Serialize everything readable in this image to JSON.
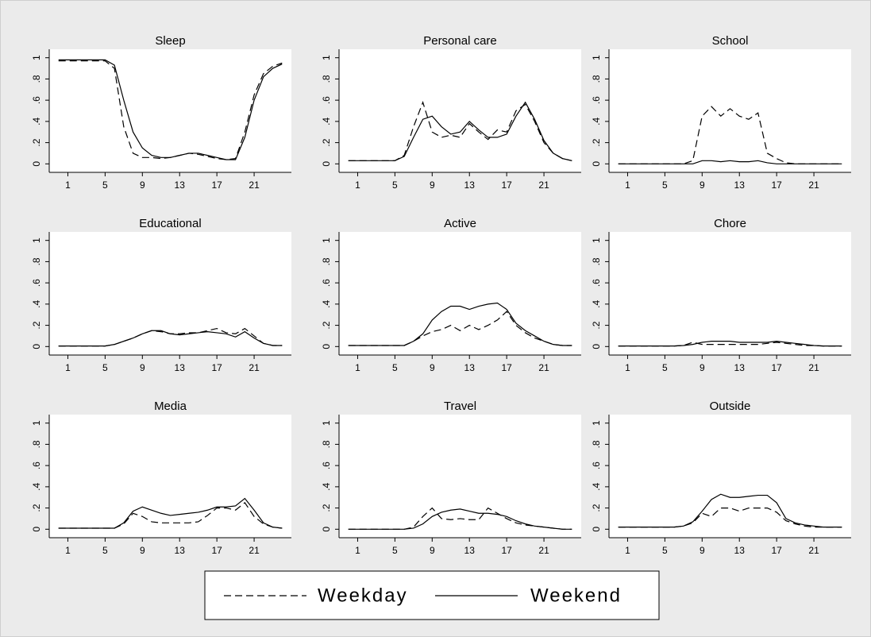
{
  "chart_data": [
    {
      "type": "line",
      "title": "Sleep",
      "x": [
        0,
        1,
        2,
        3,
        4,
        5,
        6,
        7,
        8,
        9,
        10,
        11,
        12,
        13,
        14,
        15,
        16,
        17,
        18,
        19,
        20,
        21,
        22,
        23,
        24
      ],
      "xlim": [
        -1,
        25
      ],
      "xticks": [
        1,
        5,
        9,
        13,
        17,
        21
      ],
      "ylim": [
        -0.08,
        1.08
      ],
      "yticks": [
        0,
        {
          "value": 0.2,
          "label": ".2"
        },
        {
          "value": 0.4,
          "label": ".4"
        },
        {
          "value": 0.6,
          "label": ".6"
        },
        {
          "value": 0.8,
          "label": ".8"
        },
        1
      ],
      "series": [
        {
          "name": "Weekday",
          "color": "#000000",
          "style": "dashed",
          "values": [
            0.97,
            0.97,
            0.97,
            0.97,
            0.97,
            0.97,
            0.9,
            0.35,
            0.1,
            0.06,
            0.06,
            0.05,
            0.06,
            0.08,
            0.1,
            0.09,
            0.07,
            0.05,
            0.04,
            0.05,
            0.3,
            0.65,
            0.85,
            0.92,
            0.95
          ]
        },
        {
          "name": "Weekend",
          "color": "#000000",
          "style": "solid",
          "values": [
            0.98,
            0.98,
            0.98,
            0.98,
            0.98,
            0.98,
            0.93,
            0.6,
            0.3,
            0.15,
            0.08,
            0.06,
            0.06,
            0.08,
            0.1,
            0.1,
            0.08,
            0.06,
            0.04,
            0.04,
            0.25,
            0.6,
            0.82,
            0.9,
            0.94
          ]
        }
      ]
    },
    {
      "type": "line",
      "title": "Personal care",
      "x": [
        0,
        1,
        2,
        3,
        4,
        5,
        6,
        7,
        8,
        9,
        10,
        11,
        12,
        13,
        14,
        15,
        16,
        17,
        18,
        19,
        20,
        21,
        22,
        23,
        24
      ],
      "xlim": [
        -1,
        25
      ],
      "xticks": [
        1,
        5,
        9,
        13,
        17,
        21
      ],
      "ylim": [
        -0.08,
        1.08
      ],
      "yticks": [
        0,
        {
          "value": 0.2,
          "label": ".2"
        },
        {
          "value": 0.4,
          "label": ".4"
        },
        {
          "value": 0.6,
          "label": ".6"
        },
        {
          "value": 0.8,
          "label": ".8"
        },
        1
      ],
      "series": [
        {
          "name": "Weekday",
          "color": "#000000",
          "style": "dashed",
          "values": [
            0.03,
            0.03,
            0.03,
            0.03,
            0.03,
            0.03,
            0.08,
            0.35,
            0.58,
            0.3,
            0.25,
            0.27,
            0.25,
            0.38,
            0.3,
            0.23,
            0.32,
            0.3,
            0.5,
            0.56,
            0.4,
            0.2,
            0.1,
            0.05,
            0.03
          ]
        },
        {
          "name": "Weekend",
          "color": "#000000",
          "style": "solid",
          "values": [
            0.03,
            0.03,
            0.03,
            0.03,
            0.03,
            0.03,
            0.07,
            0.25,
            0.42,
            0.45,
            0.35,
            0.28,
            0.3,
            0.4,
            0.32,
            0.25,
            0.25,
            0.28,
            0.45,
            0.58,
            0.42,
            0.22,
            0.1,
            0.05,
            0.03
          ]
        }
      ]
    },
    {
      "type": "line",
      "title": "School",
      "x": [
        0,
        1,
        2,
        3,
        4,
        5,
        6,
        7,
        8,
        9,
        10,
        11,
        12,
        13,
        14,
        15,
        16,
        17,
        18,
        19,
        20,
        21,
        22,
        23,
        24
      ],
      "xlim": [
        -1,
        25
      ],
      "xticks": [
        1,
        5,
        9,
        13,
        17,
        21
      ],
      "ylim": [
        -0.08,
        1.08
      ],
      "yticks": [
        0,
        {
          "value": 0.2,
          "label": ".2"
        },
        {
          "value": 0.4,
          "label": ".4"
        },
        {
          "value": 0.6,
          "label": ".6"
        },
        {
          "value": 0.8,
          "label": ".8"
        },
        1
      ],
      "series": [
        {
          "name": "Weekday",
          "color": "#000000",
          "style": "dashed",
          "values": [
            0,
            0,
            0,
            0,
            0,
            0,
            0,
            0,
            0.03,
            0.45,
            0.54,
            0.45,
            0.52,
            0.45,
            0.42,
            0.48,
            0.1,
            0.05,
            0.01,
            0,
            0,
            0,
            0,
            0,
            0
          ]
        },
        {
          "name": "Weekend",
          "color": "#000000",
          "style": "solid",
          "values": [
            0,
            0,
            0,
            0,
            0,
            0,
            0,
            0,
            0,
            0.03,
            0.03,
            0.02,
            0.03,
            0.02,
            0.02,
            0.03,
            0.01,
            0,
            0,
            0,
            0,
            0,
            0,
            0,
            0
          ]
        }
      ]
    },
    {
      "type": "line",
      "title": "Educational",
      "x": [
        0,
        1,
        2,
        3,
        4,
        5,
        6,
        7,
        8,
        9,
        10,
        11,
        12,
        13,
        14,
        15,
        16,
        17,
        18,
        19,
        20,
        21,
        22,
        23,
        24
      ],
      "xlim": [
        -1,
        25
      ],
      "xticks": [
        1,
        5,
        9,
        13,
        17,
        21
      ],
      "ylim": [
        -0.08,
        1.08
      ],
      "yticks": [
        0,
        {
          "value": 0.2,
          "label": ".2"
        },
        {
          "value": 0.4,
          "label": ".4"
        },
        {
          "value": 0.6,
          "label": ".6"
        },
        {
          "value": 0.8,
          "label": ".8"
        },
        1
      ],
      "series": [
        {
          "name": "Weekday",
          "color": "#000000",
          "style": "dashed",
          "values": [
            0.005,
            0.005,
            0.005,
            0.005,
            0.005,
            0.005,
            0.02,
            0.05,
            0.08,
            0.12,
            0.15,
            0.14,
            0.12,
            0.12,
            0.13,
            0.13,
            0.15,
            0.17,
            0.13,
            0.12,
            0.17,
            0.1,
            0.03,
            0.01,
            0.01
          ]
        },
        {
          "name": "Weekend",
          "color": "#000000",
          "style": "solid",
          "values": [
            0.005,
            0.005,
            0.005,
            0.005,
            0.005,
            0.005,
            0.02,
            0.05,
            0.08,
            0.12,
            0.15,
            0.15,
            0.12,
            0.11,
            0.12,
            0.13,
            0.14,
            0.13,
            0.12,
            0.09,
            0.14,
            0.08,
            0.03,
            0.01,
            0.01
          ]
        }
      ]
    },
    {
      "type": "line",
      "title": "Active",
      "x": [
        0,
        1,
        2,
        3,
        4,
        5,
        6,
        7,
        8,
        9,
        10,
        11,
        12,
        13,
        14,
        15,
        16,
        17,
        18,
        19,
        20,
        21,
        22,
        23,
        24
      ],
      "xlim": [
        -1,
        25
      ],
      "xticks": [
        1,
        5,
        9,
        13,
        17,
        21
      ],
      "ylim": [
        -0.08,
        1.08
      ],
      "yticks": [
        0,
        {
          "value": 0.2,
          "label": ".2"
        },
        {
          "value": 0.4,
          "label": ".4"
        },
        {
          "value": 0.6,
          "label": ".6"
        },
        {
          "value": 0.8,
          "label": ".8"
        },
        1
      ],
      "series": [
        {
          "name": "Weekday",
          "color": "#000000",
          "style": "dashed",
          "values": [
            0.01,
            0.01,
            0.01,
            0.01,
            0.01,
            0.01,
            0.01,
            0.05,
            0.1,
            0.14,
            0.16,
            0.2,
            0.15,
            0.2,
            0.16,
            0.2,
            0.25,
            0.33,
            0.2,
            0.13,
            0.08,
            0.05,
            0.02,
            0.01,
            0.01
          ]
        },
        {
          "name": "Weekend",
          "color": "#000000",
          "style": "solid",
          "values": [
            0.01,
            0.01,
            0.01,
            0.01,
            0.01,
            0.01,
            0.01,
            0.05,
            0.12,
            0.25,
            0.33,
            0.38,
            0.38,
            0.35,
            0.38,
            0.4,
            0.41,
            0.35,
            0.22,
            0.15,
            0.1,
            0.05,
            0.02,
            0.01,
            0.01
          ]
        }
      ]
    },
    {
      "type": "line",
      "title": "Chore",
      "x": [
        0,
        1,
        2,
        3,
        4,
        5,
        6,
        7,
        8,
        9,
        10,
        11,
        12,
        13,
        14,
        15,
        16,
        17,
        18,
        19,
        20,
        21,
        22,
        23,
        24
      ],
      "xlim": [
        -1,
        25
      ],
      "xticks": [
        1,
        5,
        9,
        13,
        17,
        21
      ],
      "ylim": [
        -0.08,
        1.08
      ],
      "yticks": [
        0,
        {
          "value": 0.2,
          "label": ".2"
        },
        {
          "value": 0.4,
          "label": ".4"
        },
        {
          "value": 0.6,
          "label": ".6"
        },
        {
          "value": 0.8,
          "label": ".8"
        },
        1
      ],
      "series": [
        {
          "name": "Weekday",
          "color": "#000000",
          "style": "dashed",
          "values": [
            0.005,
            0.005,
            0.005,
            0.005,
            0.005,
            0.005,
            0.005,
            0.01,
            0.04,
            0.02,
            0.02,
            0.02,
            0.02,
            0.02,
            0.02,
            0.02,
            0.03,
            0.04,
            0.03,
            0.02,
            0.01,
            0.01,
            0.005,
            0.005,
            0.005
          ]
        },
        {
          "name": "Weekend",
          "color": "#000000",
          "style": "solid",
          "values": [
            0.005,
            0.005,
            0.005,
            0.005,
            0.005,
            0.005,
            0.005,
            0.01,
            0.02,
            0.04,
            0.05,
            0.05,
            0.05,
            0.04,
            0.04,
            0.04,
            0.04,
            0.05,
            0.04,
            0.03,
            0.02,
            0.01,
            0.005,
            0.005,
            0.005
          ]
        }
      ]
    },
    {
      "type": "line",
      "title": "Media",
      "x": [
        0,
        1,
        2,
        3,
        4,
        5,
        6,
        7,
        8,
        9,
        10,
        11,
        12,
        13,
        14,
        15,
        16,
        17,
        18,
        19,
        20,
        21,
        22,
        23,
        24
      ],
      "xlim": [
        -1,
        25
      ],
      "xticks": [
        1,
        5,
        9,
        13,
        17,
        21
      ],
      "ylim": [
        -0.08,
        1.08
      ],
      "yticks": [
        0,
        {
          "value": 0.2,
          "label": ".2"
        },
        {
          "value": 0.4,
          "label": ".4"
        },
        {
          "value": 0.6,
          "label": ".6"
        },
        {
          "value": 0.8,
          "label": ".8"
        },
        1
      ],
      "series": [
        {
          "name": "Weekday",
          "color": "#000000",
          "style": "dashed",
          "values": [
            0.01,
            0.01,
            0.01,
            0.01,
            0.01,
            0.01,
            0.01,
            0.05,
            0.15,
            0.12,
            0.07,
            0.06,
            0.06,
            0.06,
            0.06,
            0.07,
            0.13,
            0.2,
            0.2,
            0.18,
            0.25,
            0.12,
            0.05,
            0.02,
            0.01
          ]
        },
        {
          "name": "Weekend",
          "color": "#000000",
          "style": "solid",
          "values": [
            0.01,
            0.01,
            0.01,
            0.01,
            0.01,
            0.01,
            0.01,
            0.06,
            0.17,
            0.21,
            0.18,
            0.15,
            0.13,
            0.14,
            0.15,
            0.16,
            0.18,
            0.21,
            0.21,
            0.22,
            0.29,
            0.18,
            0.06,
            0.02,
            0.01
          ]
        }
      ]
    },
    {
      "type": "line",
      "title": "Travel",
      "x": [
        0,
        1,
        2,
        3,
        4,
        5,
        6,
        7,
        8,
        9,
        10,
        11,
        12,
        13,
        14,
        15,
        16,
        17,
        18,
        19,
        20,
        21,
        22,
        23,
        24
      ],
      "xlim": [
        -1,
        25
      ],
      "xticks": [
        1,
        5,
        9,
        13,
        17,
        21
      ],
      "ylim": [
        -0.08,
        1.08
      ],
      "yticks": [
        0,
        {
          "value": 0.2,
          "label": ".2"
        },
        {
          "value": 0.4,
          "label": ".4"
        },
        {
          "value": 0.6,
          "label": ".6"
        },
        {
          "value": 0.8,
          "label": ".8"
        },
        1
      ],
      "series": [
        {
          "name": "Weekday",
          "color": "#000000",
          "style": "dashed",
          "values": [
            0,
            0,
            0,
            0,
            0,
            0,
            0,
            0.02,
            0.12,
            0.2,
            0.1,
            0.09,
            0.1,
            0.09,
            0.09,
            0.2,
            0.15,
            0.1,
            0.06,
            0.04,
            0.03,
            0.02,
            0.01,
            0,
            0
          ]
        },
        {
          "name": "Weekend",
          "color": "#000000",
          "style": "solid",
          "values": [
            0,
            0,
            0,
            0,
            0,
            0,
            0,
            0.01,
            0.05,
            0.12,
            0.16,
            0.18,
            0.19,
            0.17,
            0.15,
            0.15,
            0.14,
            0.12,
            0.08,
            0.05,
            0.03,
            0.02,
            0.01,
            0,
            0
          ]
        }
      ]
    },
    {
      "type": "line",
      "title": "Outside",
      "x": [
        0,
        1,
        2,
        3,
        4,
        5,
        6,
        7,
        8,
        9,
        10,
        11,
        12,
        13,
        14,
        15,
        16,
        17,
        18,
        19,
        20,
        21,
        22,
        23,
        24
      ],
      "xlim": [
        -1,
        25
      ],
      "xticks": [
        1,
        5,
        9,
        13,
        17,
        21
      ],
      "ylim": [
        -0.08,
        1.08
      ],
      "yticks": [
        0,
        {
          "value": 0.2,
          "label": ".2"
        },
        {
          "value": 0.4,
          "label": ".4"
        },
        {
          "value": 0.6,
          "label": ".6"
        },
        {
          "value": 0.8,
          "label": ".8"
        },
        1
      ],
      "series": [
        {
          "name": "Weekday",
          "color": "#000000",
          "style": "dashed",
          "values": [
            0.02,
            0.02,
            0.02,
            0.02,
            0.02,
            0.02,
            0.02,
            0.03,
            0.06,
            0.15,
            0.12,
            0.2,
            0.2,
            0.17,
            0.2,
            0.2,
            0.2,
            0.16,
            0.08,
            0.05,
            0.03,
            0.02,
            0.02,
            0.02,
            0.02
          ]
        },
        {
          "name": "Weekend",
          "color": "#000000",
          "style": "solid",
          "values": [
            0.02,
            0.02,
            0.02,
            0.02,
            0.02,
            0.02,
            0.02,
            0.03,
            0.07,
            0.17,
            0.28,
            0.33,
            0.3,
            0.3,
            0.31,
            0.32,
            0.32,
            0.25,
            0.1,
            0.06,
            0.04,
            0.03,
            0.02,
            0.02,
            0.02
          ]
        }
      ]
    }
  ]
}
